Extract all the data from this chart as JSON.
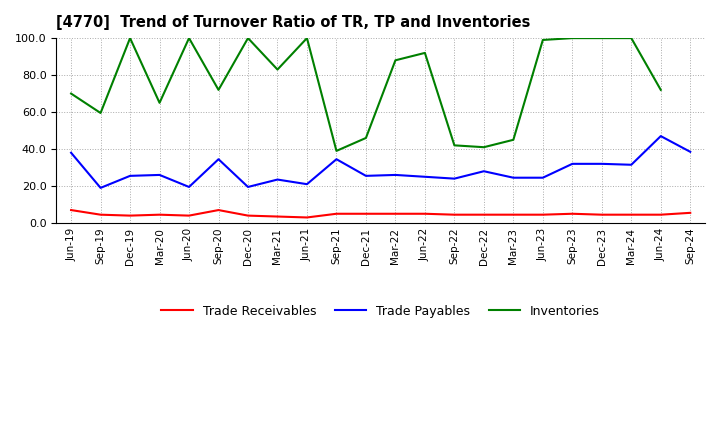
{
  "title": "[4770]  Trend of Turnover Ratio of TR, TP and Inventories",
  "x_labels": [
    "Jun-19",
    "Sep-19",
    "Dec-19",
    "Mar-20",
    "Jun-20",
    "Sep-20",
    "Dec-20",
    "Mar-21",
    "Jun-21",
    "Sep-21",
    "Dec-21",
    "Mar-22",
    "Jun-22",
    "Sep-22",
    "Dec-22",
    "Mar-23",
    "Jun-23",
    "Sep-23",
    "Dec-23",
    "Mar-24",
    "Jun-24",
    "Sep-24"
  ],
  "trade_receivables": [
    7.0,
    4.5,
    4.0,
    4.5,
    4.0,
    7.0,
    4.0,
    3.5,
    3.0,
    5.0,
    5.0,
    5.0,
    5.0,
    4.5,
    4.5,
    4.5,
    4.5,
    5.0,
    4.5,
    4.5,
    4.5,
    5.5
  ],
  "trade_payables": [
    38.0,
    19.0,
    25.5,
    26.0,
    19.5,
    34.5,
    19.5,
    23.5,
    21.0,
    34.5,
    25.5,
    26.0,
    25.0,
    24.0,
    28.0,
    24.5,
    24.5,
    32.0,
    32.0,
    31.5,
    47.0,
    38.5
  ],
  "inventories": [
    70.0,
    59.5,
    100.0,
    65.0,
    100.0,
    72.0,
    100.0,
    83.0,
    100.0,
    39.0,
    46.0,
    88.0,
    92.0,
    42.0,
    41.0,
    45.0,
    99.0,
    100.0,
    100.0,
    100.0,
    72.0,
    null
  ],
  "ylim": [
    0.0,
    100.0
  ],
  "yticks": [
    0.0,
    20.0,
    40.0,
    60.0,
    80.0,
    100.0
  ],
  "color_tr": "#ff0000",
  "color_tp": "#0000ff",
  "color_inv": "#008000",
  "legend_labels": [
    "Trade Receivables",
    "Trade Payables",
    "Inventories"
  ],
  "background_color": "#ffffff",
  "grid_color": "#aaaaaa"
}
